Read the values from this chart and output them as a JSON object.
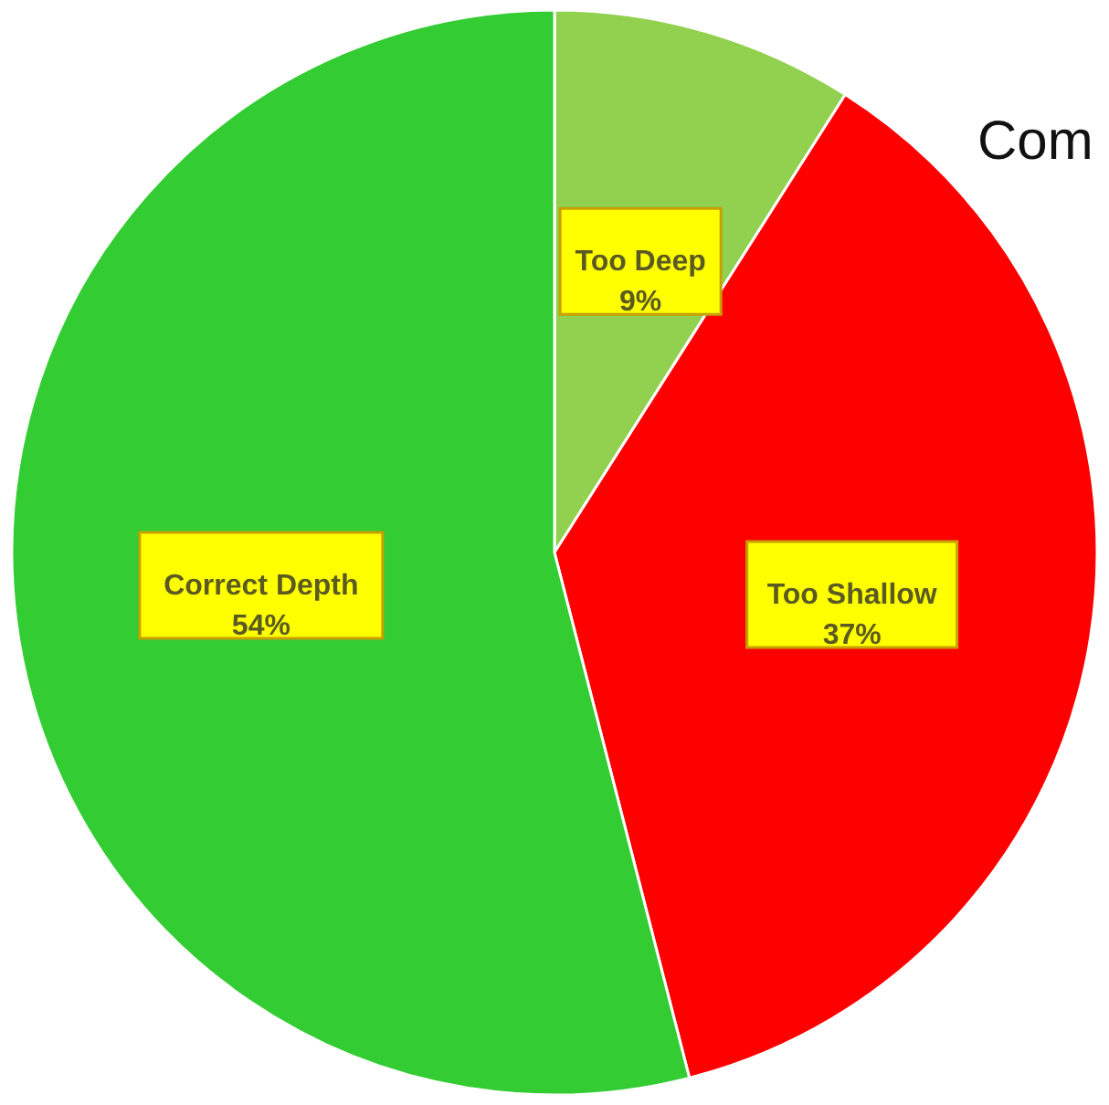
{
  "chart_data": {
    "type": "pie",
    "title": "Com",
    "categories": [
      "Too Deep",
      "Too Shallow",
      "Correct Depth"
    ],
    "values": [
      9,
      37,
      54
    ],
    "colors": [
      "#92d050",
      "#ff0000",
      "#33cc33"
    ],
    "value_labels": [
      "9%",
      "37%",
      "54%"
    ]
  }
}
